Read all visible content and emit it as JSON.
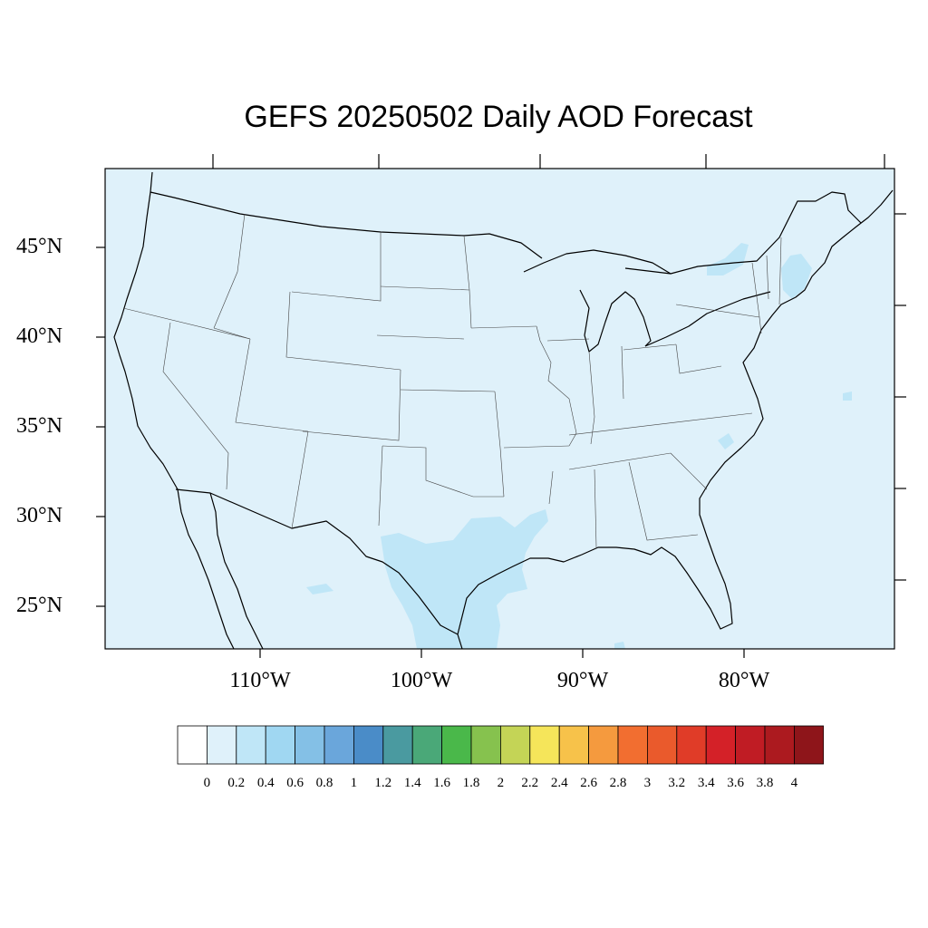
{
  "title": "GEFS 20250502 Daily AOD Forecast",
  "map": {
    "region": "Contiguous United States",
    "projection": "equirectangular",
    "lon_range": [
      -119,
      -70
    ],
    "lat_range": [
      22.5,
      49.5
    ],
    "background_color": "#dff1fa",
    "lat_ticks": [
      "45°N",
      "40°N",
      "35°N",
      "30°N",
      "25°N"
    ],
    "lon_ticks": [
      "110°W",
      "100°W",
      "90°W",
      "80°W"
    ]
  },
  "colorbar": {
    "labels": [
      "0",
      "0.2",
      "0.4",
      "0.6",
      "0.8",
      "1",
      "1.2",
      "1.4",
      "1.6",
      "1.8",
      "2",
      "2.2",
      "2.4",
      "2.6",
      "2.8",
      "3",
      "3.2",
      "3.4",
      "3.6",
      "3.8",
      "4"
    ],
    "colors": [
      "#ffffff",
      "#dff1fa",
      "#bfe6f7",
      "#a0d7f2",
      "#84c0e6",
      "#6aa6db",
      "#4a8cc8",
      "#4a9aa0",
      "#4aa878",
      "#4ab84a",
      "#86c24e",
      "#c4d456",
      "#f5e55a",
      "#f7c24a",
      "#f59a3e",
      "#f26e30",
      "#ea5a2c",
      "#e03c28",
      "#d42128",
      "#c01c24",
      "#ac1a1f",
      "#8e151a"
    ]
  },
  "chart_data": {
    "type": "heatmap",
    "title": "GEFS 20250502 Daily AOD Forecast",
    "variable": "AOD",
    "value_range": [
      0,
      4
    ],
    "levels": [
      0,
      0.2,
      0.4,
      0.6,
      0.8,
      1,
      1.2,
      1.4,
      1.6,
      1.8,
      2,
      2.2,
      2.4,
      2.6,
      2.8,
      3,
      3.2,
      3.4,
      3.6,
      3.8,
      4
    ],
    "background_bin": "0-0.2",
    "elevated_regions": [
      {
        "region": "South Texas",
        "bin": "0.2-0.4"
      },
      {
        "region": "Texas-Louisiana coast",
        "bin": "0.2-0.4"
      },
      {
        "region": "Lake Ontario / northern New York",
        "bin": "0.2-0.4"
      },
      {
        "region": "New England coast",
        "bin": "0.2-0.4"
      },
      {
        "region": "North Carolina coast",
        "bin": "0.2-0.4"
      }
    ]
  }
}
